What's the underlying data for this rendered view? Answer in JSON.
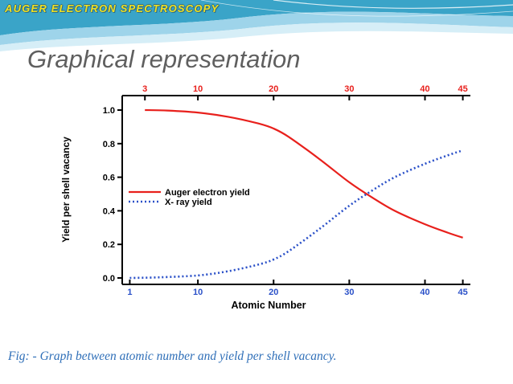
{
  "header": {
    "banner_title": "AUGER ELECTRON SPECTROSCOPY",
    "banner_colors": {
      "primary": "#3aa4c8",
      "light": "#d6eef7",
      "title": "#f0e020"
    }
  },
  "slide": {
    "heading": "Graphical representation",
    "caption": "Fig: - Graph between atomic number and yield per shell vacancy."
  },
  "chart_data": {
    "type": "line",
    "xlabel": "Atomic Number",
    "ylabel": "Yield per shell vacancy",
    "xlim": [
      0,
      46
    ],
    "ylim": [
      0,
      1.0
    ],
    "x_ticks_bottom": [
      "1",
      "10",
      "20",
      "30",
      "40",
      "45"
    ],
    "x_ticks_bottom_values": [
      1,
      10,
      20,
      30,
      40,
      45
    ],
    "x_ticks_top": [
      "3",
      "10",
      "20",
      "30",
      "40",
      "45"
    ],
    "x_ticks_top_values": [
      3,
      10,
      20,
      30,
      40,
      45
    ],
    "y_ticks": [
      "0.0",
      "0.2",
      "0.4",
      "0.6",
      "0.8",
      "1.0"
    ],
    "y_ticks_values": [
      0,
      0.2,
      0.4,
      0.6,
      0.8,
      1.0
    ],
    "grid": false,
    "legend_position": "center-left",
    "series": [
      {
        "name": "Auger electron yield",
        "color": "#e8201c",
        "style": "solid",
        "x": [
          3,
          6,
          10,
          14,
          18,
          20,
          22,
          26,
          30,
          33,
          36,
          40,
          43,
          45
        ],
        "y": [
          1.0,
          0.997,
          0.985,
          0.96,
          0.92,
          0.89,
          0.84,
          0.71,
          0.57,
          0.48,
          0.4,
          0.32,
          0.27,
          0.24
        ]
      },
      {
        "name": "X- ray yield",
        "color": "#2a50c8",
        "style": "dotted",
        "x": [
          1,
          5,
          10,
          14,
          18,
          20,
          22,
          26,
          30,
          33,
          36,
          40,
          43,
          45
        ],
        "y": [
          0.0,
          0.004,
          0.015,
          0.04,
          0.08,
          0.11,
          0.16,
          0.29,
          0.43,
          0.52,
          0.6,
          0.68,
          0.73,
          0.76
        ]
      }
    ]
  }
}
